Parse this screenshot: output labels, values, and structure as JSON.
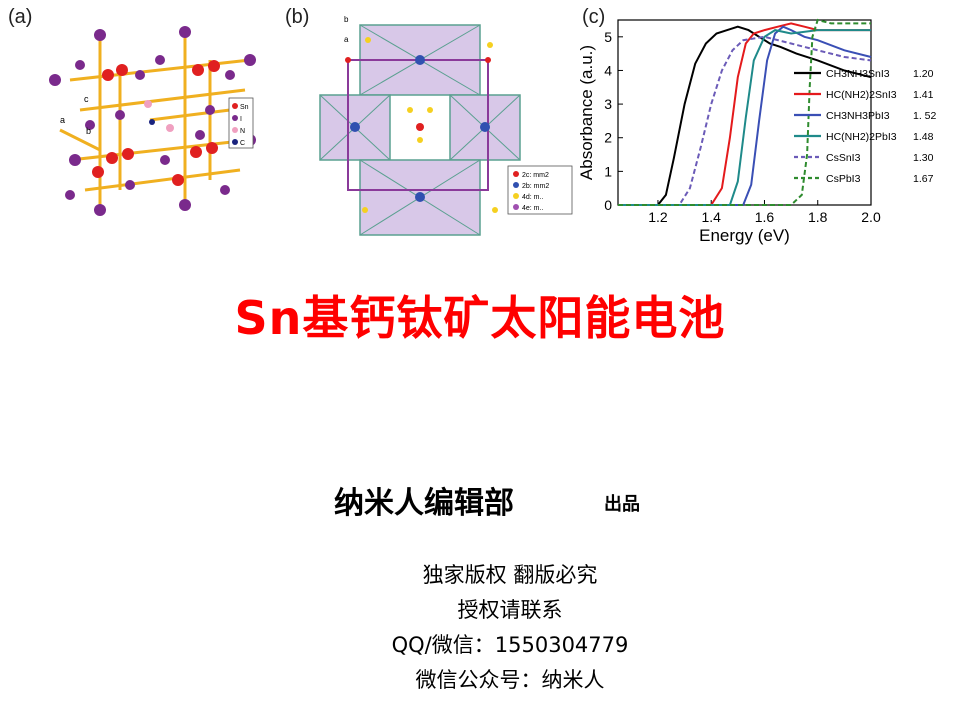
{
  "figure": {
    "panel_a_label": "(a)",
    "panel_b_label": "(b)",
    "panel_c_label": "(c)",
    "panel_a_legend": [
      "Sn",
      "I",
      "N",
      "C"
    ],
    "panel_a_axes": [
      "c",
      "a",
      "b"
    ],
    "panel_b_axes": [
      "b",
      "a"
    ],
    "panel_b_legend": [
      "2c: mm2",
      "2b: mm2",
      "4d: m..",
      "4e: m.."
    ]
  },
  "chart_data": {
    "type": "line",
    "xlabel": "Energy (eV)",
    "ylabel": "Absorbance (a.u.)",
    "xlim": [
      1.05,
      2.0
    ],
    "ylim": [
      0,
      5.5
    ],
    "xticks": [
      "1.2",
      "1.4",
      "1.6",
      "1.8",
      "2.0"
    ],
    "yticks": [
      "0",
      "1",
      "2",
      "3",
      "4",
      "5"
    ],
    "legend_position": "right",
    "series": [
      {
        "name": "CH3NH3SnI3",
        "bandgap": "1.20",
        "color": "#000000",
        "style": "solid",
        "x": [
          1.05,
          1.2,
          1.23,
          1.26,
          1.3,
          1.34,
          1.38,
          1.42,
          1.46,
          1.5,
          1.54,
          1.58,
          1.62,
          1.66,
          1.72,
          1.8,
          1.9,
          2.0
        ],
        "y": [
          0.0,
          0.0,
          0.3,
          1.4,
          3.0,
          4.2,
          4.8,
          5.1,
          5.2,
          5.3,
          5.2,
          5.0,
          4.8,
          4.7,
          4.5,
          4.3,
          4.0,
          3.8
        ]
      },
      {
        "name": "HC(NH2)2SnI3",
        "bandgap": "1.41",
        "color": "#e41a1c",
        "style": "solid",
        "x": [
          1.05,
          1.4,
          1.44,
          1.47,
          1.5,
          1.53,
          1.56,
          1.6,
          1.65,
          1.7,
          1.75,
          1.8,
          1.9,
          2.0
        ],
        "y": [
          0.0,
          0.0,
          0.5,
          2.0,
          3.8,
          4.8,
          5.1,
          5.2,
          5.3,
          5.4,
          5.3,
          5.2,
          5.2,
          5.2
        ]
      },
      {
        "name": "CH3NH3PbI3",
        "bandgap": "1. 52",
        "color": "#3a4fb5",
        "style": "solid",
        "x": [
          1.05,
          1.52,
          1.55,
          1.58,
          1.61,
          1.64,
          1.67,
          1.7,
          1.75,
          1.8,
          1.9,
          2.0
        ],
        "y": [
          0.0,
          0.0,
          0.6,
          2.5,
          4.3,
          5.1,
          5.3,
          5.2,
          5.0,
          4.9,
          4.6,
          4.4
        ]
      },
      {
        "name": "HC(NH2)2PbI3",
        "bandgap": "1.48",
        "color": "#1f8a8a",
        "style": "solid",
        "x": [
          1.05,
          1.47,
          1.5,
          1.53,
          1.56,
          1.6,
          1.64,
          1.7,
          1.8,
          1.9,
          2.0
        ],
        "y": [
          0.0,
          0.0,
          0.7,
          2.6,
          4.3,
          5.0,
          5.2,
          5.1,
          5.2,
          5.2,
          5.2
        ]
      },
      {
        "name": "CsSnI3",
        "bandgap": "1.30",
        "color": "#6b5bb8",
        "style": "dashed",
        "x": [
          1.05,
          1.28,
          1.32,
          1.36,
          1.4,
          1.44,
          1.48,
          1.52,
          1.6,
          1.7,
          1.8,
          1.9,
          2.0
        ],
        "y": [
          0.0,
          0.0,
          0.5,
          1.7,
          3.0,
          4.0,
          4.6,
          4.9,
          5.0,
          4.8,
          4.6,
          4.4,
          4.3
        ]
      },
      {
        "name": "CsPbI3",
        "bandgap": "1.67",
        "color": "#2e8b2e",
        "style": "dashed",
        "x": [
          1.05,
          1.7,
          1.74,
          1.76,
          1.77,
          1.78,
          1.8,
          1.85,
          1.9,
          2.0
        ],
        "y": [
          0.0,
          0.0,
          0.3,
          1.5,
          3.5,
          5.0,
          5.5,
          5.4,
          5.4,
          5.4
        ]
      }
    ]
  },
  "title": "Sn基钙钛矿太阳能电池",
  "publisher": "纳米人编辑部",
  "publisher_suffix": "出品",
  "info": {
    "line1": "独家版权 翻版必究",
    "line2": "授权请联系",
    "line3": "QQ/微信：1550304779",
    "line4": "微信公众号：纳米人"
  }
}
